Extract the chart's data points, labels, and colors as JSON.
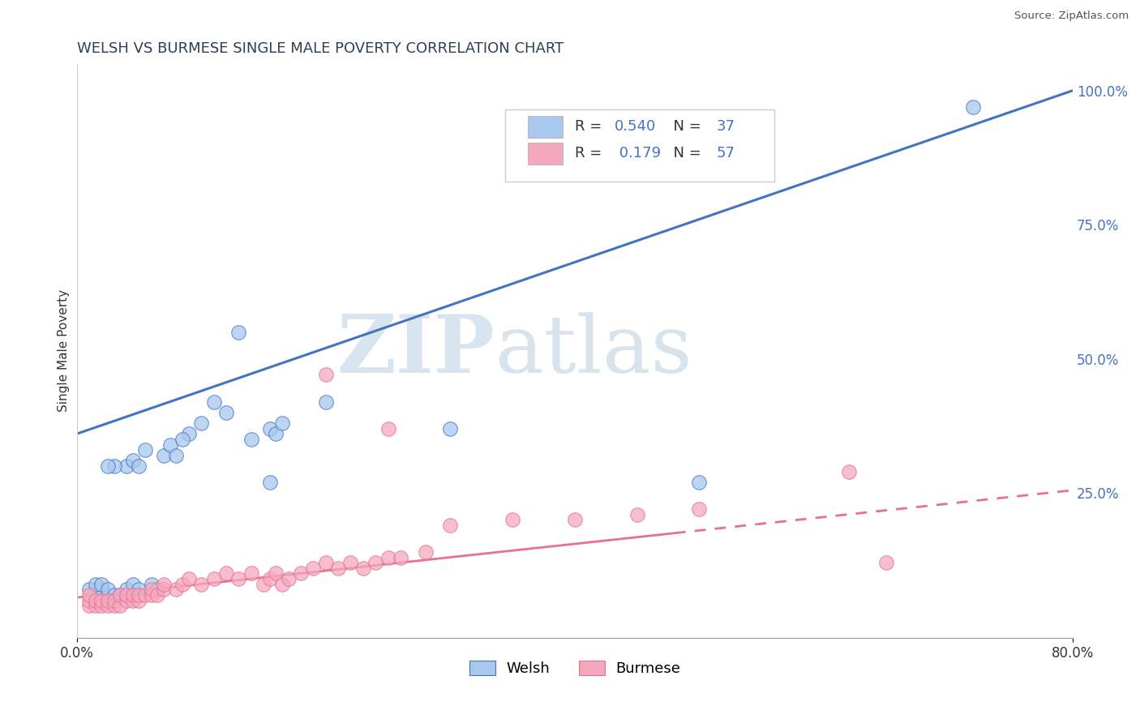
{
  "title": "WELSH VS BURMESE SINGLE MALE POVERTY CORRELATION CHART",
  "source": "Source: ZipAtlas.com",
  "ylabel": "Single Male Poverty",
  "xlim": [
    0.0,
    0.8
  ],
  "ylim": [
    -0.02,
    1.05
  ],
  "yticks_right": [
    0.0,
    0.25,
    0.5,
    0.75,
    1.0
  ],
  "yticklabels_right": [
    "",
    "25.0%",
    "50.0%",
    "75.0%",
    "100.0%"
  ],
  "welsh_R": 0.54,
  "welsh_N": 37,
  "burmese_R": 0.179,
  "burmese_N": 57,
  "welsh_color": "#A8C8EE",
  "burmese_color": "#F4A8BE",
  "welsh_line_color": "#4472C4",
  "burmese_line_color": "#E87090",
  "grid_color": "#CCCCCC",
  "title_color": "#2E4057",
  "watermark_zip": "ZIP",
  "watermark_atlas": "atlas",
  "welsh_scatter_x": [
    0.14,
    0.155,
    0.16,
    0.165,
    0.3,
    0.155,
    0.09,
    0.1,
    0.11,
    0.12,
    0.07,
    0.075,
    0.08,
    0.085,
    0.04,
    0.045,
    0.05,
    0.055,
    0.03,
    0.025,
    0.02,
    0.015,
    0.01,
    0.015,
    0.02,
    0.025,
    0.03,
    0.035,
    0.04,
    0.045,
    0.05,
    0.06,
    0.065,
    0.13,
    0.2,
    0.5,
    0.72
  ],
  "welsh_scatter_y": [
    0.35,
    0.37,
    0.36,
    0.38,
    0.37,
    0.27,
    0.36,
    0.38,
    0.42,
    0.4,
    0.32,
    0.34,
    0.32,
    0.35,
    0.3,
    0.31,
    0.3,
    0.33,
    0.3,
    0.3,
    0.07,
    0.07,
    0.07,
    0.08,
    0.08,
    0.07,
    0.06,
    0.06,
    0.07,
    0.08,
    0.07,
    0.08,
    0.07,
    0.55,
    0.42,
    0.27,
    0.97
  ],
  "burmese_scatter_x": [
    0.01,
    0.01,
    0.01,
    0.015,
    0.015,
    0.02,
    0.02,
    0.025,
    0.025,
    0.03,
    0.03,
    0.035,
    0.035,
    0.04,
    0.04,
    0.045,
    0.045,
    0.05,
    0.05,
    0.055,
    0.06,
    0.06,
    0.065,
    0.07,
    0.07,
    0.08,
    0.085,
    0.09,
    0.1,
    0.11,
    0.12,
    0.13,
    0.14,
    0.15,
    0.155,
    0.16,
    0.165,
    0.17,
    0.18,
    0.19,
    0.2,
    0.21,
    0.22,
    0.23,
    0.24,
    0.25,
    0.26,
    0.28,
    0.2,
    0.25,
    0.3,
    0.35,
    0.4,
    0.45,
    0.5,
    0.62,
    0.65
  ],
  "burmese_scatter_y": [
    0.04,
    0.05,
    0.06,
    0.04,
    0.05,
    0.04,
    0.05,
    0.04,
    0.05,
    0.04,
    0.05,
    0.04,
    0.06,
    0.05,
    0.06,
    0.05,
    0.06,
    0.05,
    0.06,
    0.06,
    0.06,
    0.07,
    0.06,
    0.07,
    0.08,
    0.07,
    0.08,
    0.09,
    0.08,
    0.09,
    0.1,
    0.09,
    0.1,
    0.08,
    0.09,
    0.1,
    0.08,
    0.09,
    0.1,
    0.11,
    0.12,
    0.11,
    0.12,
    0.11,
    0.12,
    0.13,
    0.13,
    0.14,
    0.47,
    0.37,
    0.19,
    0.2,
    0.2,
    0.21,
    0.22,
    0.29,
    0.12
  ],
  "welsh_line_x0": 0.0,
  "welsh_line_y0": 0.36,
  "welsh_line_x1": 0.8,
  "welsh_line_y1": 1.0,
  "burmese_line_x0": 0.0,
  "burmese_line_y0": 0.055,
  "burmese_line_x1": 0.8,
  "burmese_line_y1": 0.255
}
